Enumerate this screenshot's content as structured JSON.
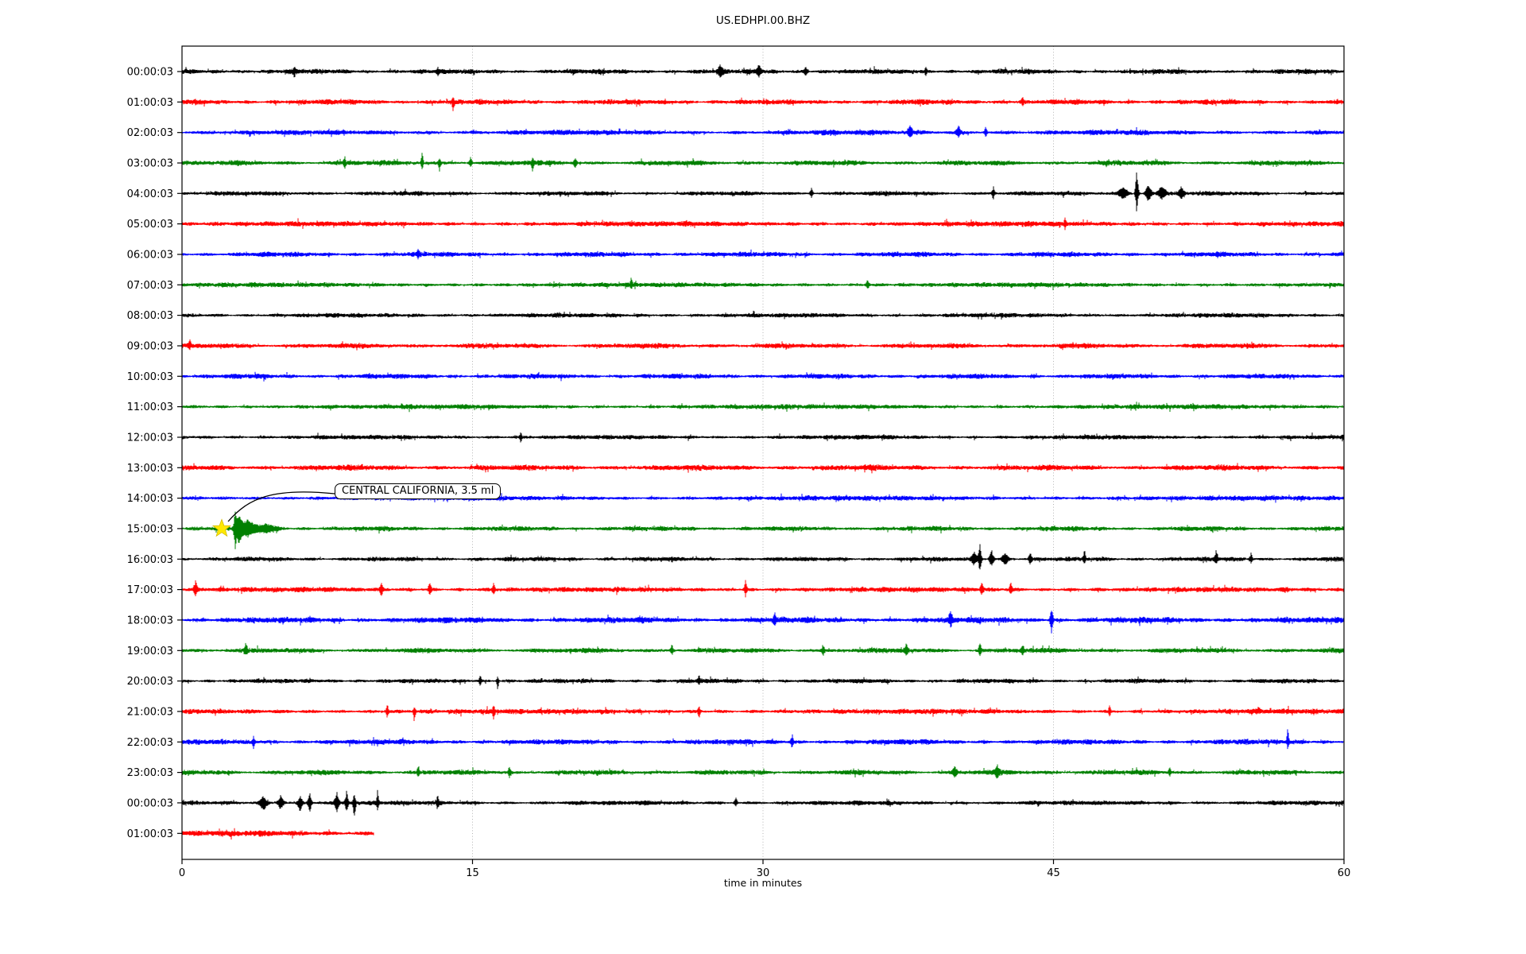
{
  "title": "US.EDHPI.00.BHZ",
  "x_axis": {
    "label": "time in minutes",
    "tick_labels": [
      "0",
      "15",
      "30",
      "45",
      "60"
    ],
    "tick_values": [
      0,
      15,
      30,
      45,
      60
    ],
    "range": [
      0,
      60
    ],
    "gridlines_at": [
      15,
      30,
      45
    ]
  },
  "annotation": {
    "text": "CENTRAL CALIFORNIA, 3.5 ml",
    "row_label": "15:00:03",
    "event_time_min": 2.05,
    "marker": "yellow-star"
  },
  "colors": {
    "trace_cycle": [
      "#000000",
      "#ff0000",
      "#0000ff",
      "#008000"
    ],
    "grid": "#ababab",
    "axes": "#000000",
    "star_fill": "#ffe900",
    "star_edge": "#d4bc00",
    "annotation_bg": "#ffffff"
  },
  "chart_data": {
    "type": "line",
    "subtype": "helicorder-dayplot",
    "station_id": "US.EDHPI.00.BHZ",
    "xlabel": "time in minutes",
    "xlim": [
      0,
      60
    ],
    "minutes_per_row": 60,
    "grid": "vertical-dotted",
    "legend": "none",
    "marker": {
      "row_index": 15,
      "time_min": 2.05,
      "symbol": "star",
      "color": "#ffe900"
    },
    "rows": [
      {
        "label": "00:00:03",
        "color": "#000000",
        "duration_min": 60,
        "noise": 3.3,
        "events": [
          {
            "t": 5.8,
            "up": 2,
            "down": 2,
            "w": 3
          },
          {
            "t": 13.2,
            "up": 1.8,
            "down": 1.5,
            "w": 3
          },
          {
            "t": 27.8,
            "up": 2.2,
            "down": 1.8,
            "w": 7
          },
          {
            "t": 29.8,
            "up": 2.3,
            "down": 2,
            "w": 7
          },
          {
            "t": 32.2,
            "up": 2,
            "down": 1.7,
            "w": 5
          },
          {
            "t": 38.4,
            "up": 2,
            "down": 1.5,
            "w": 3
          }
        ]
      },
      {
        "label": "01:00:03",
        "color": "#ff0000",
        "duration_min": 60,
        "noise": 3.5,
        "events": [
          {
            "t": 14.0,
            "up": 1.5,
            "down": 3.4,
            "w": 3
          },
          {
            "t": 43.4,
            "up": 2.2,
            "down": 1.5,
            "w": 3
          }
        ]
      },
      {
        "label": "02:00:03",
        "color": "#0000ff",
        "duration_min": 60,
        "noise": 3.4,
        "events": [
          {
            "t": 37.6,
            "up": 2.6,
            "down": 1.8,
            "w": 6
          },
          {
            "t": 40.1,
            "up": 2.8,
            "down": 2,
            "w": 6
          },
          {
            "t": 41.5,
            "up": 2.2,
            "down": 1.5,
            "w": 4
          }
        ]
      },
      {
        "label": "03:00:03",
        "color": "#008000",
        "duration_min": 60,
        "noise": 3.3,
        "events": [
          {
            "t": 8.4,
            "up": 2.6,
            "down": 2,
            "w": 3
          },
          {
            "t": 12.4,
            "up": 5.8,
            "down": 2.6,
            "w": 3
          },
          {
            "t": 13.3,
            "up": 2,
            "down": 3,
            "w": 3
          },
          {
            "t": 14.9,
            "up": 2.4,
            "down": 1.6,
            "w": 4
          },
          {
            "t": 18.1,
            "up": 1.5,
            "down": 3.6,
            "w": 3
          },
          {
            "t": 20.3,
            "up": 2.5,
            "down": 2,
            "w": 4
          }
        ]
      },
      {
        "label": "04:00:03",
        "color": "#000000",
        "duration_min": 60,
        "noise": 3.0,
        "events": [
          {
            "t": 32.5,
            "up": 2.6,
            "down": 2,
            "w": 4
          },
          {
            "t": 41.9,
            "up": 2.8,
            "down": 2.2,
            "w": 4
          },
          {
            "t": 48.6,
            "up": 3,
            "down": 2.5,
            "w": 12
          },
          {
            "t": 49.3,
            "up": 13,
            "down": 9,
            "w": 4
          },
          {
            "t": 49.9,
            "up": 4.5,
            "down": 3.5,
            "w": 8
          },
          {
            "t": 50.6,
            "up": 3.2,
            "down": 2.6,
            "w": 10
          },
          {
            "t": 51.6,
            "up": 2.6,
            "down": 2.2,
            "w": 8
          }
        ]
      },
      {
        "label": "05:00:03",
        "color": "#ff0000",
        "duration_min": 60,
        "noise": 3.5,
        "events": [
          {
            "t": 45.6,
            "up": 2.3,
            "down": 1.6,
            "w": 3
          }
        ]
      },
      {
        "label": "06:00:03",
        "color": "#0000ff",
        "duration_min": 60,
        "noise": 3.3,
        "events": [
          {
            "t": 12.2,
            "up": 1.8,
            "down": 1.5,
            "w": 4
          }
        ]
      },
      {
        "label": "07:00:03",
        "color": "#008000",
        "duration_min": 60,
        "noise": 3.1,
        "events": [
          {
            "t": 23.2,
            "up": 3,
            "down": 1.2,
            "w": 3
          },
          {
            "t": 35.4,
            "up": 2.2,
            "down": 1.5,
            "w": 5
          }
        ]
      },
      {
        "label": "08:00:03",
        "color": "#000000",
        "duration_min": 60,
        "noise": 3.0,
        "events": []
      },
      {
        "label": "09:00:03",
        "color": "#ff0000",
        "duration_min": 60,
        "noise": 3.4,
        "events": [
          {
            "t": 0.4,
            "up": 2.6,
            "down": 1.5,
            "w": 3
          }
        ]
      },
      {
        "label": "10:00:03",
        "color": "#0000ff",
        "duration_min": 60,
        "noise": 3.3,
        "events": []
      },
      {
        "label": "11:00:03",
        "color": "#008000",
        "duration_min": 60,
        "noise": 3.2,
        "events": []
      },
      {
        "label": "12:00:03",
        "color": "#000000",
        "duration_min": 60,
        "noise": 3.0,
        "events": [
          {
            "t": 17.5,
            "up": 2.6,
            "down": 2,
            "w": 3
          }
        ]
      },
      {
        "label": "13:00:03",
        "color": "#ff0000",
        "duration_min": 60,
        "noise": 3.7,
        "events": []
      },
      {
        "label": "14:00:03",
        "color": "#0000ff",
        "duration_min": 60,
        "noise": 3.3,
        "events": []
      },
      {
        "label": "15:00:03",
        "color": "#008000",
        "duration_min": 60,
        "noise": 3.2,
        "events": [
          {
            "t": 2.75,
            "up": 7.5,
            "down": 6,
            "w": 4
          },
          {
            "t": 2.95,
            "up": 5,
            "down": 7,
            "w": 9
          },
          {
            "t": 3.4,
            "up": 3,
            "down": 3,
            "w": 18
          },
          {
            "t": 4.3,
            "up": 1.7,
            "down": 1.7,
            "w": 30
          }
        ]
      },
      {
        "label": "16:00:03",
        "color": "#000000",
        "duration_min": 60,
        "noise": 3.0,
        "events": [
          {
            "t": 40.9,
            "up": 3,
            "down": 2.5,
            "w": 7
          },
          {
            "t": 41.2,
            "up": 7,
            "down": 5.5,
            "w": 4
          },
          {
            "t": 41.8,
            "up": 4,
            "down": 3.5,
            "w": 6
          },
          {
            "t": 42.5,
            "up": 3,
            "down": 2.5,
            "w": 8
          },
          {
            "t": 43.8,
            "up": 3.4,
            "down": 2,
            "w": 4
          },
          {
            "t": 46.6,
            "up": 4.8,
            "down": 2,
            "w": 3
          },
          {
            "t": 53.4,
            "up": 3,
            "down": 2,
            "w": 4
          },
          {
            "t": 55.2,
            "up": 2.6,
            "down": 2,
            "w": 4
          }
        ]
      },
      {
        "label": "17:00:03",
        "color": "#ff0000",
        "duration_min": 60,
        "noise": 3.4,
        "events": [
          {
            "t": 0.7,
            "up": 3,
            "down": 2.5,
            "w": 5
          },
          {
            "t": 10.3,
            "up": 3,
            "down": 2,
            "w": 4
          },
          {
            "t": 12.8,
            "up": 2.6,
            "down": 2,
            "w": 4
          },
          {
            "t": 16.1,
            "up": 2.5,
            "down": 2,
            "w": 4
          },
          {
            "t": 29.1,
            "up": 3.6,
            "down": 2.5,
            "w": 4
          },
          {
            "t": 41.3,
            "up": 3,
            "down": 2.2,
            "w": 4
          },
          {
            "t": 42.8,
            "up": 2.6,
            "down": 2,
            "w": 4
          }
        ]
      },
      {
        "label": "18:00:03",
        "color": "#0000ff",
        "duration_min": 60,
        "noise": 3.9,
        "events": [
          {
            "t": 30.6,
            "up": 2.4,
            "down": 2,
            "w": 4
          },
          {
            "t": 39.7,
            "up": 2.8,
            "down": 2.4,
            "w": 4
          },
          {
            "t": 44.9,
            "up": 4.5,
            "down": 5,
            "w": 4
          }
        ]
      },
      {
        "label": "19:00:03",
        "color": "#008000",
        "duration_min": 60,
        "noise": 3.3,
        "events": [
          {
            "t": 3.3,
            "up": 2.5,
            "down": 1.5,
            "w": 4
          },
          {
            "t": 25.3,
            "up": 2.2,
            "down": 1.8,
            "w": 4
          },
          {
            "t": 33.1,
            "up": 2.4,
            "down": 2,
            "w": 4
          },
          {
            "t": 37.4,
            "up": 2.4,
            "down": 2,
            "w": 5
          },
          {
            "t": 41.2,
            "up": 3,
            "down": 2,
            "w": 4
          },
          {
            "t": 43.4,
            "up": 2,
            "down": 1.8,
            "w": 4
          }
        ]
      },
      {
        "label": "20:00:03",
        "color": "#000000",
        "duration_min": 60,
        "noise": 3.0,
        "events": [
          {
            "t": 15.4,
            "up": 3,
            "down": 2,
            "w": 3
          },
          {
            "t": 16.3,
            "up": 2,
            "down": 4.4,
            "w": 3
          },
          {
            "t": 26.7,
            "up": 2.5,
            "down": 2,
            "w": 3
          }
        ]
      },
      {
        "label": "21:00:03",
        "color": "#ff0000",
        "duration_min": 60,
        "noise": 3.4,
        "events": [
          {
            "t": 10.6,
            "up": 3.6,
            "down": 2.5,
            "w": 3
          },
          {
            "t": 12.0,
            "up": 2,
            "down": 4.4,
            "w": 3
          },
          {
            "t": 16.1,
            "up": 2,
            "down": 3.3,
            "w": 3
          },
          {
            "t": 26.7,
            "up": 2,
            "down": 3,
            "w": 3
          },
          {
            "t": 47.9,
            "up": 2.6,
            "down": 2,
            "w": 3
          }
        ]
      },
      {
        "label": "22:00:03",
        "color": "#0000ff",
        "duration_min": 60,
        "noise": 3.5,
        "events": [
          {
            "t": 3.7,
            "up": 2,
            "down": 3.3,
            "w": 3
          },
          {
            "t": 31.5,
            "up": 2.4,
            "down": 2,
            "w": 4
          },
          {
            "t": 57.1,
            "up": 5.4,
            "down": 2.5,
            "w": 3
          }
        ]
      },
      {
        "label": "23:00:03",
        "color": "#008000",
        "duration_min": 60,
        "noise": 3.3,
        "events": [
          {
            "t": 12.2,
            "up": 3,
            "down": 2,
            "w": 3
          },
          {
            "t": 16.9,
            "up": 2.5,
            "down": 2,
            "w": 3
          },
          {
            "t": 39.9,
            "up": 2.5,
            "down": 2,
            "w": 6
          },
          {
            "t": 42.1,
            "up": 2.6,
            "down": 2,
            "w": 6
          },
          {
            "t": 51.0,
            "up": 2.6,
            "down": 1.5,
            "w": 3
          }
        ]
      },
      {
        "label": "00:00:03",
        "color": "#000000",
        "duration_min": 60,
        "noise": 3.0,
        "events": [
          {
            "t": 4.2,
            "up": 3,
            "down": 3,
            "w": 10
          },
          {
            "t": 5.1,
            "up": 3.6,
            "down": 3,
            "w": 8
          },
          {
            "t": 6.1,
            "up": 3,
            "down": 3.6,
            "w": 6
          },
          {
            "t": 6.6,
            "up": 4.2,
            "down": 4,
            "w": 5
          },
          {
            "t": 8.0,
            "up": 4,
            "down": 3.6,
            "w": 6
          },
          {
            "t": 8.5,
            "up": 5.8,
            "down": 4,
            "w": 4
          },
          {
            "t": 8.9,
            "up": 4,
            "down": 7,
            "w": 4
          },
          {
            "t": 10.1,
            "up": 5.2,
            "down": 3,
            "w": 3
          },
          {
            "t": 13.2,
            "up": 4,
            "down": 2.5,
            "w": 3
          },
          {
            "t": 28.6,
            "up": 2.2,
            "down": 1.8,
            "w": 4
          }
        ]
      },
      {
        "label": "01:00:03",
        "color": "#ff0000",
        "duration_min": 9.9,
        "noise": 3.9,
        "events": []
      }
    ]
  }
}
